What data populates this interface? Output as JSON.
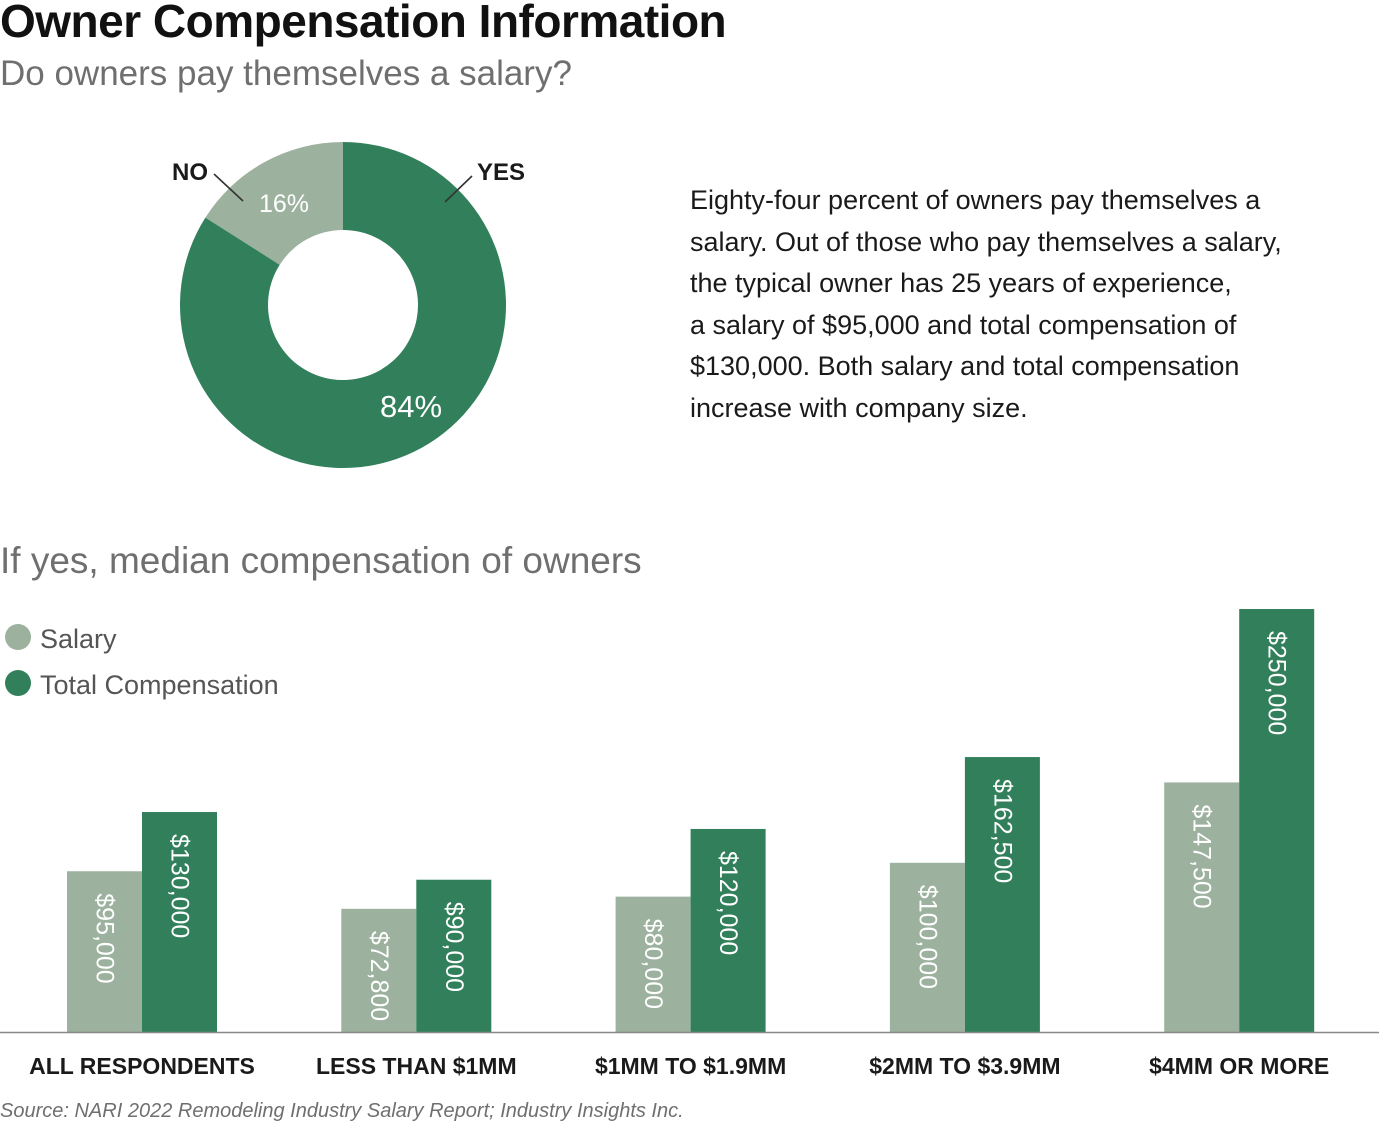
{
  "header": {
    "title": "Owner Compensation Information",
    "subtitle": "Do owners pay themselves a salary?"
  },
  "paragraph": {
    "lines": [
      "Eighty-four percent of owners pay themselves a",
      "salary. Out of those who pay themselves a salary,",
      "the typical owner has 25 years of experience,",
      "a salary of $95,000 and total compensation of",
      "$130,000. Both salary and total compensation",
      "increase with company size."
    ]
  },
  "section": {
    "title": "If yes, median compensation of owners"
  },
  "source": "Source: NARI 2022 Remodeling Industry Salary Report; Industry Insights Inc.",
  "colors": {
    "light": "#9cb19e",
    "dark": "#31805b",
    "axis": "#888888"
  },
  "chart_data": [
    {
      "type": "pie",
      "donut": true,
      "slices": [
        {
          "label": "NO",
          "value": 16,
          "value_label": "16%",
          "color": "#9cb19e"
        },
        {
          "label": "YES",
          "value": 84,
          "value_label": "84%",
          "color": "#31805b"
        }
      ]
    },
    {
      "type": "bar",
      "categories": [
        "ALL RESPONDENTS",
        "LESS THAN $1MM",
        "$1MM TO $1.9MM",
        "$2MM TO $3.9MM",
        "$4MM OR MORE"
      ],
      "series": [
        {
          "name": "Salary",
          "color": "#9cb19e",
          "values": [
            95000,
            72800,
            80000,
            100000,
            147500
          ],
          "labels": [
            "$95,000",
            "$72,800",
            "$80,000",
            "$100,000",
            "$147,500"
          ]
        },
        {
          "name": "Total Compensation",
          "color": "#31805b",
          "values": [
            130000,
            90000,
            120000,
            162500,
            250000
          ],
          "labels": [
            "$130,000",
            "$90,000",
            "$120,000",
            "$162,500",
            "$250,000"
          ]
        }
      ],
      "ylim": [
        0,
        250000
      ],
      "grid": false,
      "legend": "top-left"
    }
  ]
}
